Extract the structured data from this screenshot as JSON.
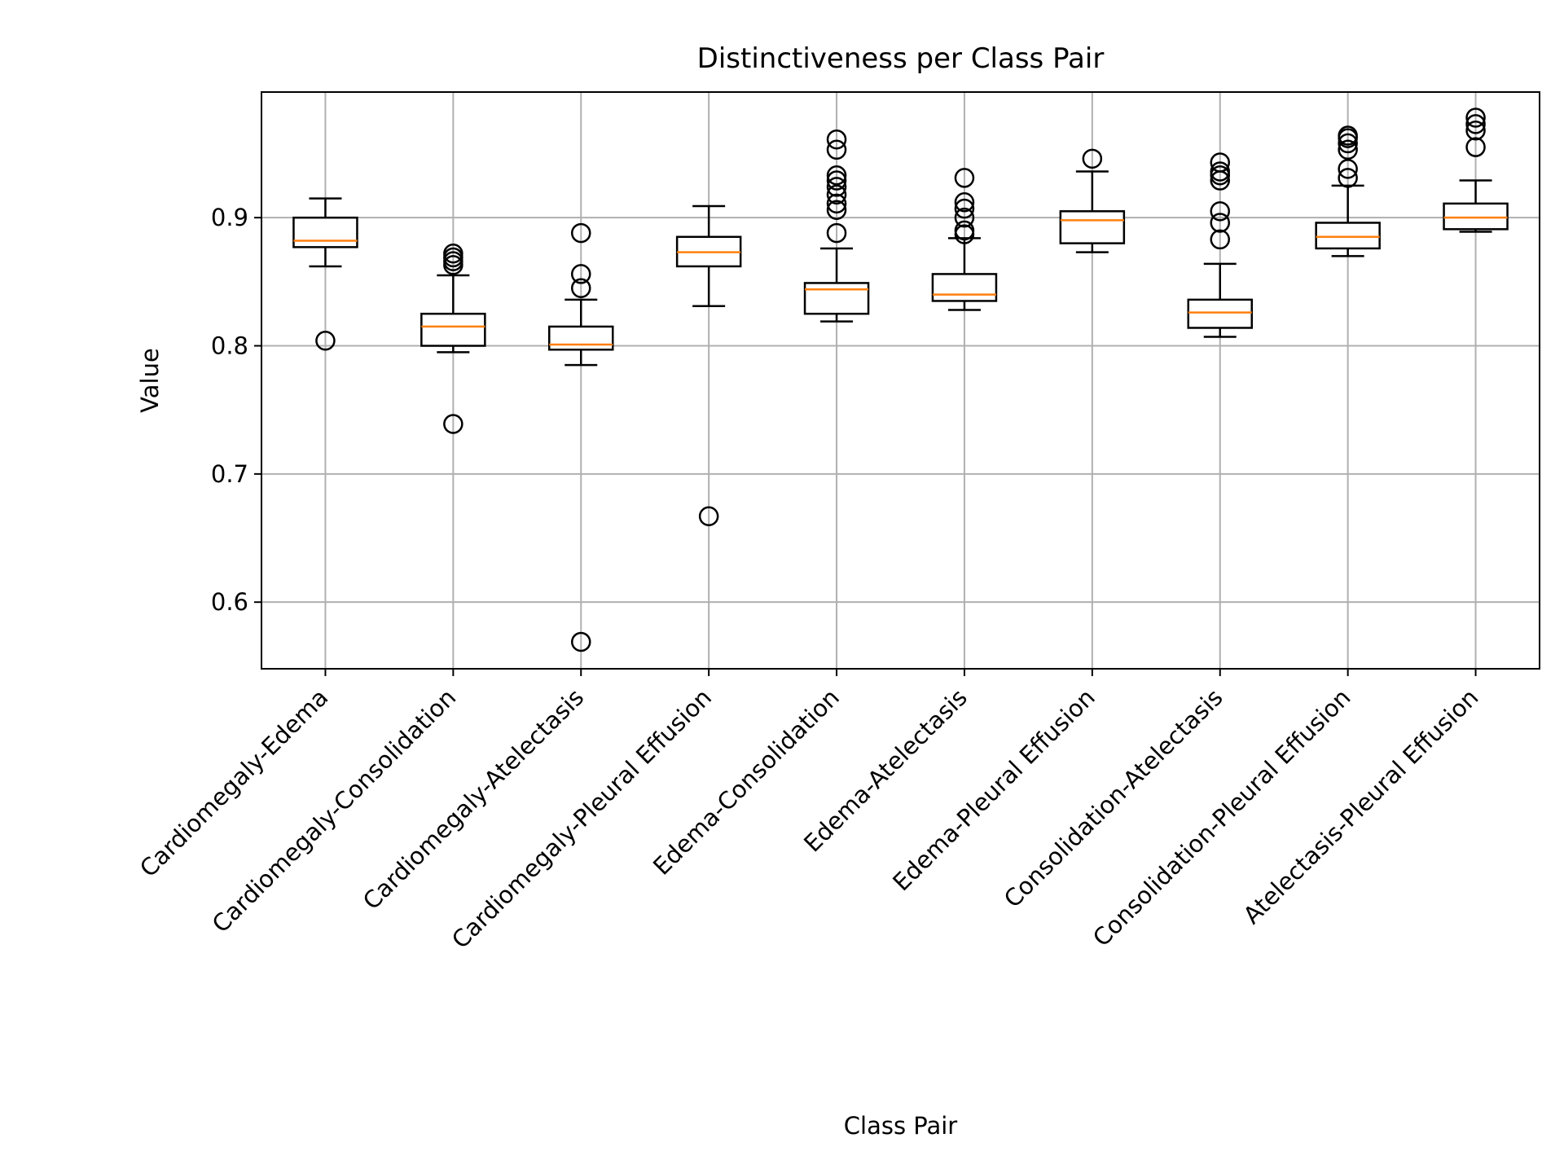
{
  "chart_data": {
    "type": "box",
    "title": "Distinctiveness per Class Pair",
    "xlabel": "Class Pair",
    "ylabel": "Value",
    "ylim": [
      0.548,
      0.998
    ],
    "yticks": [
      0.6,
      0.7,
      0.8,
      0.9
    ],
    "grid": true,
    "colors": {
      "box": "#000000",
      "median": "#ff7f0e",
      "grid": "#b0b0b0"
    },
    "categories": [
      "Cardiomegaly-Edema",
      "Cardiomegaly-Consolidation",
      "Cardiomegaly-Atelectasis",
      "Cardiomegaly-Pleural Effusion",
      "Edema-Consolidation",
      "Edema-Atelectasis",
      "Edema-Pleural Effusion",
      "Consolidation-Atelectasis",
      "Consolidation-Pleural Effusion",
      "Atelectasis-Pleural Effusion"
    ],
    "boxes": [
      {
        "whisker_low": 0.862,
        "q1": 0.877,
        "median": 0.882,
        "q3": 0.9,
        "whisker_high": 0.915,
        "outliers": [
          0.804
        ]
      },
      {
        "whisker_low": 0.795,
        "q1": 0.8,
        "median": 0.815,
        "q3": 0.825,
        "whisker_high": 0.855,
        "outliers": [
          0.739,
          0.863,
          0.866,
          0.869,
          0.872
        ]
      },
      {
        "whisker_low": 0.785,
        "q1": 0.797,
        "median": 0.801,
        "q3": 0.815,
        "whisker_high": 0.836,
        "outliers": [
          0.569,
          0.845,
          0.856,
          0.888
        ]
      },
      {
        "whisker_low": 0.831,
        "q1": 0.862,
        "median": 0.873,
        "q3": 0.885,
        "whisker_high": 0.909,
        "outliers": [
          0.667
        ]
      },
      {
        "whisker_low": 0.819,
        "q1": 0.825,
        "median": 0.844,
        "q3": 0.849,
        "whisker_high": 0.876,
        "outliers": [
          0.888,
          0.906,
          0.911,
          0.918,
          0.924,
          0.929,
          0.933,
          0.953,
          0.961
        ]
      },
      {
        "whisker_low": 0.828,
        "q1": 0.835,
        "median": 0.84,
        "q3": 0.856,
        "whisker_high": 0.884,
        "outliers": [
          0.887,
          0.89,
          0.9,
          0.907,
          0.912,
          0.931
        ]
      },
      {
        "whisker_low": 0.873,
        "q1": 0.88,
        "median": 0.898,
        "q3": 0.905,
        "whisker_high": 0.936,
        "outliers": [
          0.946
        ]
      },
      {
        "whisker_low": 0.807,
        "q1": 0.814,
        "median": 0.826,
        "q3": 0.836,
        "whisker_high": 0.864,
        "outliers": [
          0.883,
          0.896,
          0.905,
          0.929,
          0.933,
          0.936,
          0.943
        ]
      },
      {
        "whisker_low": 0.87,
        "q1": 0.876,
        "median": 0.885,
        "q3": 0.896,
        "whisker_high": 0.925,
        "outliers": [
          0.931,
          0.938,
          0.953,
          0.958,
          0.962,
          0.964
        ]
      },
      {
        "whisker_low": 0.889,
        "q1": 0.891,
        "median": 0.9,
        "q3": 0.911,
        "whisker_high": 0.929,
        "outliers": [
          0.955,
          0.968,
          0.973,
          0.978
        ]
      }
    ]
  }
}
